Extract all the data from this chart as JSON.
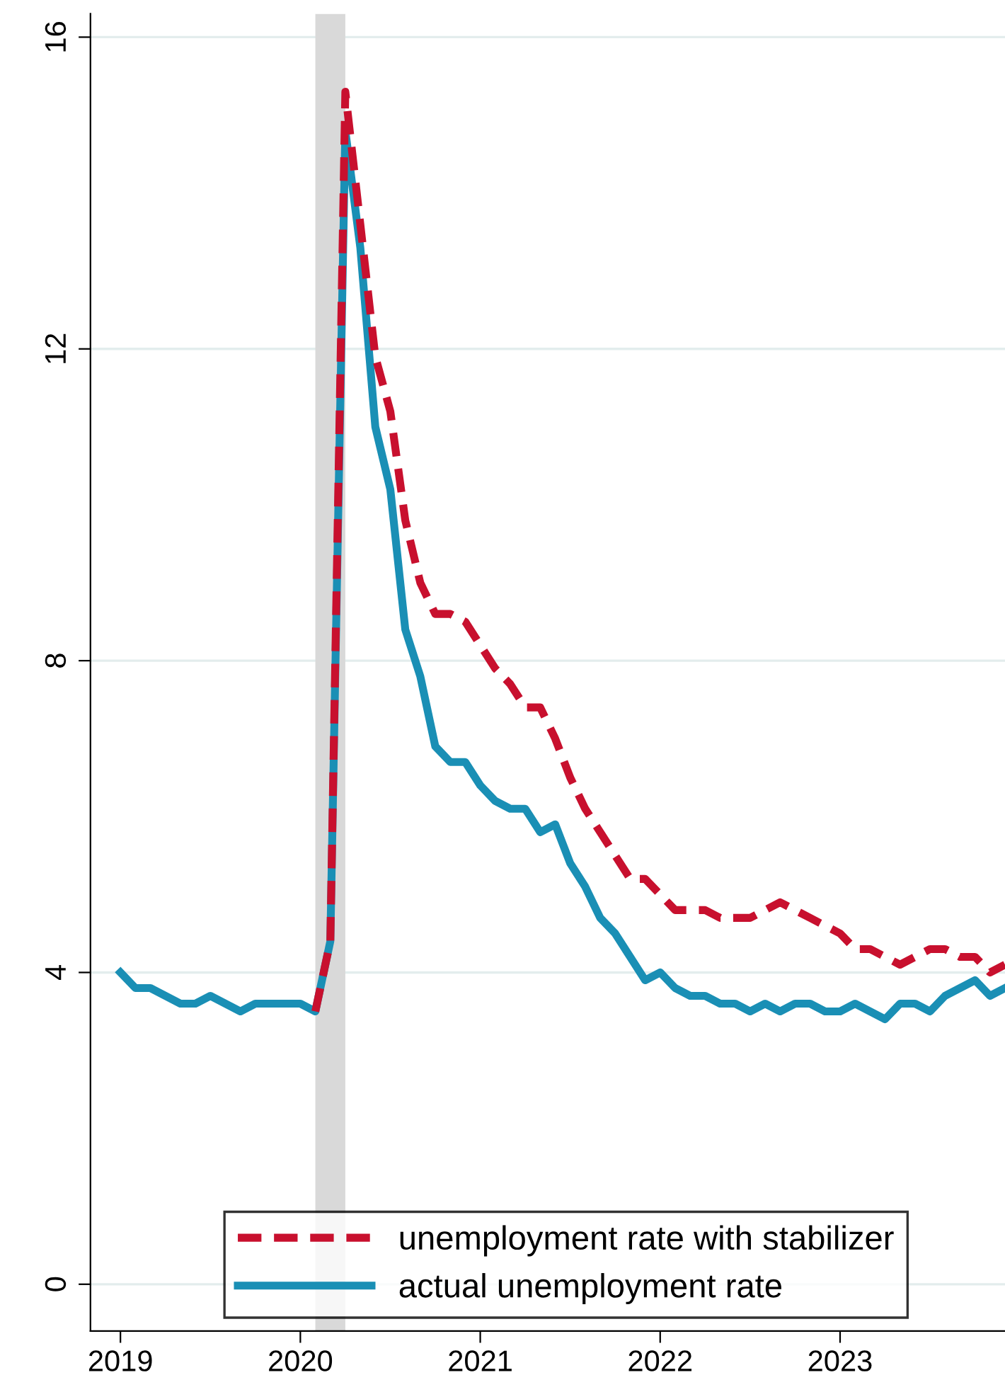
{
  "chart_data": {
    "type": "line",
    "x": [
      "2019-01",
      "2019-02",
      "2019-03",
      "2019-04",
      "2019-05",
      "2019-06",
      "2019-07",
      "2019-08",
      "2019-09",
      "2019-10",
      "2019-11",
      "2019-12",
      "2020-01",
      "2020-02",
      "2020-03",
      "2020-04",
      "2020-05",
      "2020-06",
      "2020-07",
      "2020-08",
      "2020-09",
      "2020-10",
      "2020-11",
      "2020-12",
      "2021-01",
      "2021-02",
      "2021-03",
      "2021-04",
      "2021-05",
      "2021-06",
      "2021-07",
      "2021-08",
      "2021-09",
      "2021-10",
      "2021-11",
      "2021-12",
      "2022-01",
      "2022-02",
      "2022-03",
      "2022-04",
      "2022-05",
      "2022-06",
      "2022-07",
      "2022-08",
      "2022-09",
      "2022-10",
      "2022-11",
      "2022-12",
      "2023-01",
      "2023-02",
      "2023-03",
      "2023-04",
      "2023-05",
      "2023-06",
      "2023-07",
      "2023-08",
      "2023-09",
      "2023-10",
      "2023-11",
      "2023-12"
    ],
    "series": [
      {
        "name": "unemployment rate with stabilizer",
        "color": "#c8102e",
        "line_style": "dashed",
        "values": [
          null,
          null,
          null,
          null,
          null,
          null,
          null,
          null,
          null,
          null,
          null,
          null,
          null,
          3.5,
          4.4,
          15.3,
          13.6,
          11.9,
          11.2,
          9.8,
          9.0,
          8.6,
          8.6,
          8.5,
          8.2,
          7.9,
          7.7,
          7.4,
          7.4,
          7.0,
          6.5,
          6.1,
          5.8,
          5.5,
          5.2,
          5.2,
          5.0,
          4.8,
          4.8,
          4.8,
          4.7,
          4.7,
          4.7,
          4.8,
          4.9,
          4.8,
          4.7,
          4.6,
          4.5,
          4.3,
          4.3,
          4.2,
          4.1,
          4.2,
          4.3,
          4.3,
          4.2,
          4.2,
          4.0,
          4.1
        ]
      },
      {
        "name": "actual unemployment rate",
        "color": "#1a8fb5",
        "line_style": "solid",
        "values": [
          4.0,
          3.8,
          3.8,
          3.7,
          3.6,
          3.6,
          3.7,
          3.6,
          3.5,
          3.6,
          3.6,
          3.6,
          3.6,
          3.5,
          4.4,
          14.8,
          13.3,
          11.0,
          10.2,
          8.4,
          7.8,
          6.9,
          6.7,
          6.7,
          6.4,
          6.2,
          6.1,
          6.1,
          5.8,
          5.9,
          5.4,
          5.1,
          4.7,
          4.5,
          4.2,
          3.9,
          4.0,
          3.8,
          3.7,
          3.7,
          3.6,
          3.6,
          3.5,
          3.6,
          3.5,
          3.6,
          3.6,
          3.5,
          3.5,
          3.6,
          3.5,
          3.4,
          3.6,
          3.6,
          3.5,
          3.7,
          3.8,
          3.9,
          3.7,
          3.8
        ]
      }
    ],
    "xlim": [
      "2018-11",
      "2023-12"
    ],
    "xticks": [
      {
        "value": "2019-01",
        "label": "2019"
      },
      {
        "value": "2020-01",
        "label": "2020"
      },
      {
        "value": "2021-01",
        "label": "2021"
      },
      {
        "value": "2022-01",
        "label": "2022"
      },
      {
        "value": "2023-01",
        "label": "2023"
      }
    ],
    "ylim": [
      -0.6,
      16.3
    ],
    "yticks": [
      0,
      4,
      8,
      12,
      16
    ],
    "bands": [
      {
        "axis": "x",
        "from": "2020-02",
        "to": "2020-04",
        "color": "#d9d9d9"
      }
    ],
    "grid": "y",
    "legend": "bottom"
  }
}
